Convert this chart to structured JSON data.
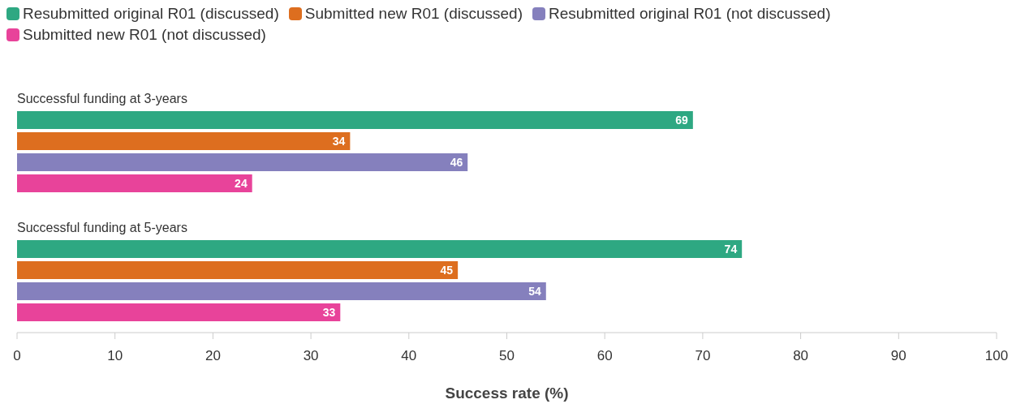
{
  "chart_data": {
    "type": "bar",
    "orientation": "horizontal",
    "categories": [
      "Successful funding at 3-years",
      "Successful funding at 5-years"
    ],
    "series": [
      {
        "name": "Resubmitted original R01 (discussed)",
        "color": "#2ea882",
        "values": [
          69,
          74
        ]
      },
      {
        "name": "Submitted new R01 (discussed)",
        "color": "#dd6e1f",
        "values": [
          34,
          45
        ]
      },
      {
        "name": "Resubmitted original R01 (not discussed)",
        "color": "#8580bd",
        "values": [
          46,
          54
        ]
      },
      {
        "name": "Submitted new R01 (not discussed)",
        "color": "#e8439a",
        "values": [
          24,
          33
        ]
      }
    ],
    "xlabel": "Success rate (%)",
    "xlim": [
      0,
      100
    ],
    "xticks": [
      0,
      10,
      20,
      30,
      40,
      50,
      60,
      70,
      80,
      90,
      100
    ],
    "data_labels": true,
    "legend": "top left",
    "grid": false
  }
}
